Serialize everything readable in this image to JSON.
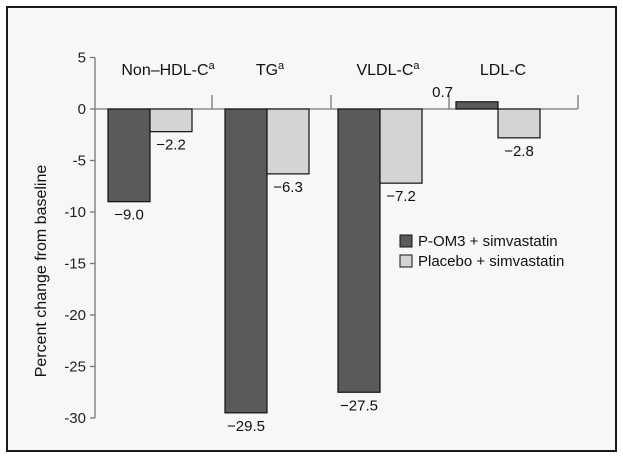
{
  "chart_data": {
    "type": "bar",
    "categories": [
      "Non–HDL-C",
      "TG",
      "VLDL-C",
      "LDL-C"
    ],
    "category_superscripts": [
      "a",
      "a",
      "a",
      ""
    ],
    "series": [
      {
        "name": "P-OM3 + simvastatin",
        "values": [
          -9.0,
          -29.5,
          -27.5,
          0.7
        ],
        "labels": [
          "−9.0",
          "−29.5",
          "−27.5",
          "0.7"
        ],
        "color": "#5a5a5a"
      },
      {
        "name": "Placebo + simvastatin",
        "values": [
          -2.2,
          -6.3,
          -7.2,
          -2.8
        ],
        "labels": [
          "−2.2",
          "−6.3",
          "−7.2",
          "−2.8"
        ],
        "color": "#d4d4d4"
      }
    ],
    "ylabel": "Percent change from baseline",
    "xlabel": "",
    "ylim": [
      -30,
      5
    ],
    "yticks": [
      5,
      0,
      -5,
      -10,
      -15,
      -20,
      -25,
      -30
    ],
    "ytick_labels": [
      "5",
      "0",
      "-5",
      "-10",
      "-15",
      "-20",
      "-25",
      "-30"
    ],
    "legend_position": "right",
    "grid": false
  }
}
